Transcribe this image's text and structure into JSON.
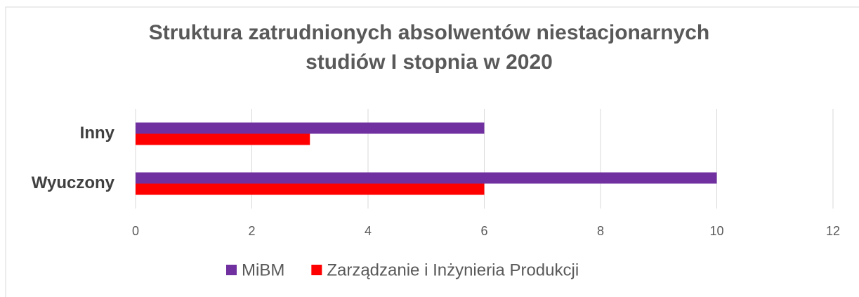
{
  "chart_data": {
    "type": "hbar",
    "title": "Struktura zatrudnionych absolwentów niestacjonarnych studiów I stopnia w 2020",
    "categories": [
      "Wyuczony",
      "Inny"
    ],
    "series": [
      {
        "name": "MiBM",
        "color": "#7030a0",
        "values": [
          10,
          6
        ]
      },
      {
        "name": "Zarządzanie i Inżynieria Produkcji",
        "color": "#ff0000",
        "values": [
          6,
          3
        ]
      }
    ],
    "xlim": [
      0,
      12
    ],
    "xticks": [
      0,
      2,
      4,
      6,
      8,
      10,
      12
    ],
    "grid": true,
    "legend": "bottom"
  }
}
